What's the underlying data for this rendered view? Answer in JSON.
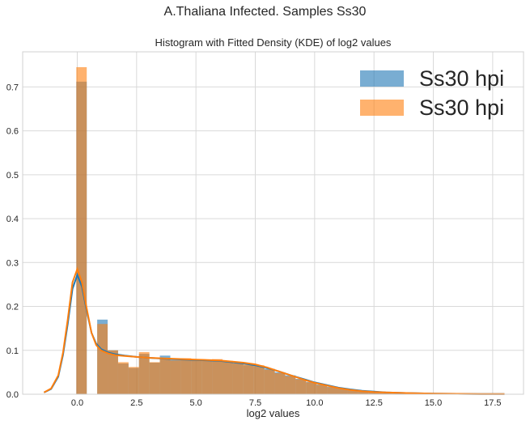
{
  "figure": {
    "suptitle": "A.Thaliana Infected. Samples Ss30"
  },
  "chart_data": {
    "type": "histogram",
    "title": "Histogram with Fitted Density (KDE) of log2 values",
    "xlabel": "log2 values",
    "ylabel": "",
    "xlim": [
      -2.3,
      18.8
    ],
    "ylim": [
      0,
      0.78
    ],
    "xticks": [
      0.0,
      2.5,
      5.0,
      7.5,
      10.0,
      12.5,
      15.0,
      17.5
    ],
    "xtick_labels": [
      "0.0",
      "2.5",
      "5.0",
      "7.5",
      "10.0",
      "12.5",
      "15.0",
      "17.5"
    ],
    "yticks": [
      0.0,
      0.1,
      0.2,
      0.3,
      0.4,
      0.5,
      0.6,
      0.7
    ],
    "ytick_labels": [
      "0.0",
      "0.1",
      "0.2",
      "0.3",
      "0.4",
      "0.5",
      "0.6",
      "0.7"
    ],
    "grid": true,
    "legend_position": "top-right",
    "bin_edges": [
      -0.04,
      0.4,
      0.84,
      1.28,
      1.72,
      2.16,
      2.6,
      3.04,
      3.48,
      3.92,
      4.36,
      4.8,
      5.24,
      5.68,
      6.12,
      6.56,
      7.0,
      7.44,
      7.88,
      8.32,
      8.76,
      9.2,
      9.64,
      10.08,
      10.52,
      10.96,
      11.4,
      11.84,
      12.28,
      12.72,
      13.16,
      13.6,
      14.04,
      14.48,
      14.92,
      15.36,
      15.8,
      16.24,
      16.68,
      17.12,
      17.56,
      18.0
    ],
    "series": [
      {
        "name": "Ss30 hpi",
        "color": "#1f77b4",
        "opacity": 0.6,
        "hist": [
          0.712,
          0.0,
          0.17,
          0.1,
          0.07,
          0.06,
          0.092,
          0.072,
          0.088,
          0.078,
          0.079,
          0.078,
          0.076,
          0.078,
          0.074,
          0.07,
          0.066,
          0.064,
          0.058,
          0.05,
          0.043,
          0.035,
          0.028,
          0.022,
          0.017,
          0.013,
          0.01,
          0.007,
          0.005,
          0.004,
          0.003,
          0.002,
          0.0015,
          0.001,
          0.001,
          0.0008,
          0.0006,
          0.0005,
          0.0004,
          0.0003,
          0.0003
        ],
        "kde_x": [
          -1.4,
          -1.1,
          -0.8,
          -0.6,
          -0.4,
          -0.2,
          0.0,
          0.2,
          0.4,
          0.6,
          0.8,
          1.0,
          1.3,
          1.6,
          2.0,
          2.5,
          3.0,
          4.0,
          5.0,
          6.0,
          7.0,
          7.5,
          8.0,
          8.5,
          9.0,
          9.5,
          10.0,
          10.5,
          11.0,
          11.5,
          12.0,
          12.5,
          13.0,
          14.0,
          15.0,
          16.0,
          17.0,
          18.0
        ],
        "kde_y": [
          0.004,
          0.012,
          0.04,
          0.09,
          0.16,
          0.24,
          0.272,
          0.245,
          0.19,
          0.14,
          0.115,
          0.103,
          0.095,
          0.091,
          0.088,
          0.085,
          0.083,
          0.08,
          0.078,
          0.076,
          0.07,
          0.066,
          0.06,
          0.052,
          0.043,
          0.035,
          0.027,
          0.021,
          0.015,
          0.011,
          0.008,
          0.006,
          0.004,
          0.0025,
          0.0015,
          0.001,
          0.0006,
          0.0003
        ]
      },
      {
        "name": "Ss30 hpi",
        "color": "#ff7f0e",
        "opacity": 0.6,
        "hist": [
          0.745,
          0.0,
          0.16,
          0.1,
          0.073,
          0.062,
          0.096,
          0.073,
          0.083,
          0.077,
          0.082,
          0.08,
          0.078,
          0.08,
          0.076,
          0.072,
          0.068,
          0.066,
          0.056,
          0.048,
          0.041,
          0.034,
          0.027,
          0.021,
          0.016,
          0.012,
          0.009,
          0.006,
          0.005,
          0.004,
          0.003,
          0.002,
          0.0015,
          0.001,
          0.001,
          0.0008,
          0.0006,
          0.0005,
          0.0004,
          0.0003,
          0.0003
        ],
        "kde_x": [
          -1.4,
          -1.1,
          -0.8,
          -0.6,
          -0.4,
          -0.2,
          0.0,
          0.2,
          0.4,
          0.6,
          0.8,
          1.0,
          1.3,
          1.6,
          2.0,
          2.5,
          3.0,
          4.0,
          5.0,
          6.0,
          7.0,
          7.5,
          8.0,
          8.5,
          9.0,
          9.5,
          10.0,
          10.5,
          11.0,
          11.5,
          12.0,
          12.5,
          13.0,
          14.0,
          15.0,
          16.0,
          17.0,
          18.0
        ],
        "kde_y": [
          0.004,
          0.013,
          0.043,
          0.095,
          0.17,
          0.255,
          0.285,
          0.255,
          0.195,
          0.14,
          0.112,
          0.1,
          0.093,
          0.089,
          0.087,
          0.085,
          0.083,
          0.081,
          0.079,
          0.077,
          0.072,
          0.068,
          0.061,
          0.052,
          0.043,
          0.034,
          0.026,
          0.02,
          0.014,
          0.01,
          0.007,
          0.005,
          0.004,
          0.0025,
          0.0015,
          0.001,
          0.0006,
          0.0003
        ]
      }
    ]
  }
}
